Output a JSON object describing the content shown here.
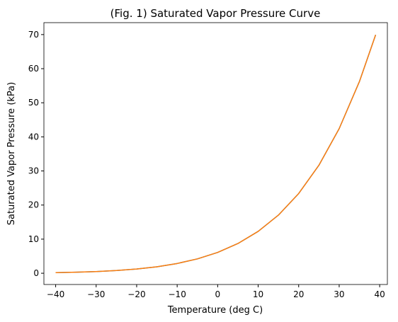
{
  "chart_data": {
    "type": "line",
    "title": "(Fig. 1) Saturated Vapor Pressure Curve",
    "x_label": "Temperature (deg C)",
    "y_label": "Saturated Vapor Pressure (kPa)",
    "x": [
      -40,
      -35,
      -30,
      -25,
      -20,
      -15,
      -10,
      -5,
      0,
      5,
      10,
      15,
      20,
      25,
      30,
      35,
      39
    ],
    "series": [
      {
        "color": "#1f77b4",
        "values": [
          0.18,
          0.31,
          0.5,
          0.8,
          1.25,
          1.9,
          2.86,
          4.21,
          6.11,
          8.72,
          12.28,
          17.05,
          23.38,
          31.68,
          42.42,
          56.23,
          69.92
        ]
      },
      {
        "color": "#ff7f0e",
        "values": [
          0.18,
          0.31,
          0.5,
          0.8,
          1.25,
          1.9,
          2.86,
          4.21,
          6.11,
          8.72,
          12.28,
          17.05,
          23.38,
          31.68,
          42.42,
          56.23,
          69.92
        ]
      }
    ],
    "xlim": [
      -42.9,
      41.9
    ],
    "xticks": [
      {
        "value": -40,
        "label": "−40"
      },
      {
        "value": -30,
        "label": "−30"
      },
      {
        "value": -20,
        "label": "−20"
      },
      {
        "value": -10,
        "label": "−10"
      },
      0,
      10,
      20,
      30,
      40
    ],
    "ylim": [
      -3.3,
      73.5
    ],
    "yticks": [
      0,
      10,
      20,
      30,
      40,
      50,
      60,
      70
    ]
  }
}
